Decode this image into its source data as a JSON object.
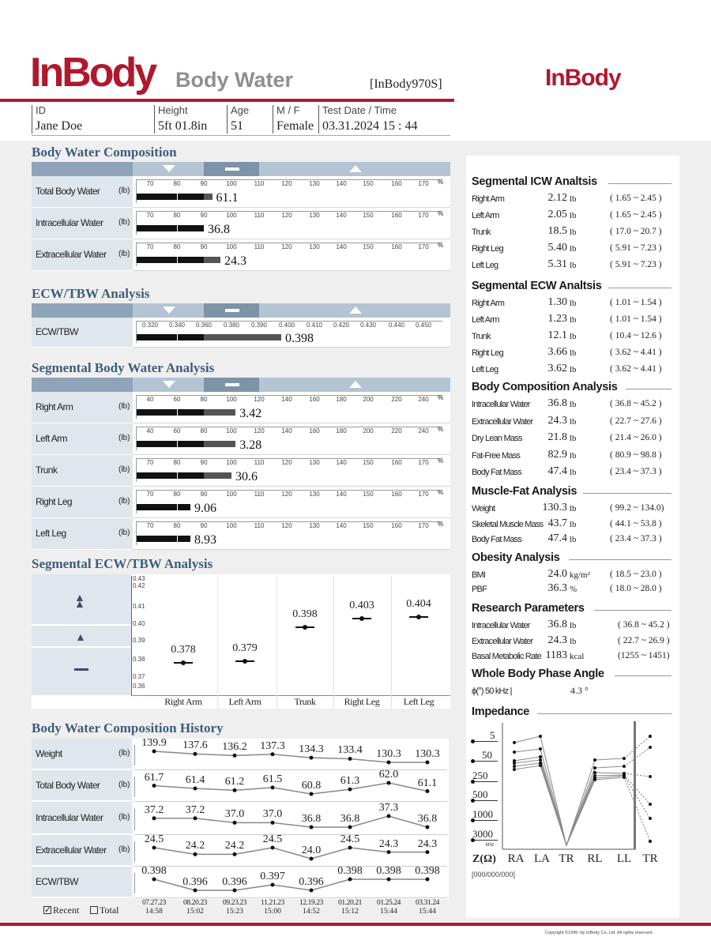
{
  "header": {
    "logo": "InBody",
    "report_title": "Body Water",
    "model": "[InBody970S]",
    "right_logo": "InBody",
    "fields": [
      {
        "label": "ID",
        "value": "Jane Doe"
      },
      {
        "label": "Height",
        "value": "5ft 01.8in"
      },
      {
        "label": "Age",
        "value": "51"
      },
      {
        "label": "M / F",
        "value": "Female"
      },
      {
        "label": "Test Date / Time",
        "value": "03.31.2024 15 : 44"
      }
    ]
  },
  "colors": {
    "brand_red": "#b0182e",
    "section_blue": "#3e5c7d",
    "band_dark": "#7d93a8",
    "band_light": "#b4c4d2",
    "label_bg": "#dfe6ec"
  },
  "range_icons": {
    "under": "triangle-down-icon",
    "normal": "dash-icon",
    "over": "triangle-up-icon"
  },
  "body_water_composition": {
    "title": "Body Water Composition",
    "ticks": [
      "70",
      "80",
      "90",
      "100",
      "110",
      "120",
      "130",
      "140",
      "150",
      "160",
      "170"
    ],
    "tick_unit": "%",
    "rows": [
      {
        "label": "Total Body Water",
        "unit": "(lb)",
        "value": "61.1",
        "level": 93
      },
      {
        "label": "Intracellular Water",
        "unit": "(lb)",
        "value": "36.8",
        "level": 90
      },
      {
        "label": "Extracellular Water",
        "unit": "(lb)",
        "value": "24.3",
        "level": 96
      }
    ]
  },
  "ecw_tbw_analysis": {
    "title": "ECW/TBW Analysis",
    "ticks": [
      "0.320",
      "0.340",
      "0.360",
      "0.380",
      "0.390",
      "0.400",
      "0.410",
      "0.420",
      "0.430",
      "0.440",
      "0.450"
    ],
    "rows": [
      {
        "label": "ECW/TBW",
        "unit": "",
        "value": "0.398",
        "level": 0.398
      }
    ]
  },
  "segmental_body_water": {
    "title": "Segmental Body Water Analysis",
    "tick_unit": "%",
    "rows": [
      {
        "label": "Right Arm",
        "unit": "(lb)",
        "value": "3.42",
        "level": 103,
        "ticks": [
          "40",
          "60",
          "80",
          "100",
          "120",
          "140",
          "160",
          "180",
          "200",
          "220",
          "240"
        ]
      },
      {
        "label": "Left Arm",
        "unit": "(lb)",
        "value": "3.28",
        "level": 103,
        "ticks": [
          "40",
          "60",
          "80",
          "100",
          "120",
          "140",
          "160",
          "180",
          "200",
          "220",
          "240"
        ]
      },
      {
        "label": "Trunk",
        "unit": "(lb)",
        "value": "30.6",
        "level": 100,
        "ticks": [
          "70",
          "80",
          "90",
          "100",
          "110",
          "120",
          "130",
          "140",
          "150",
          "160",
          "170"
        ]
      },
      {
        "label": "Right Leg",
        "unit": "(lb)",
        "value": "9.06",
        "level": 85,
        "ticks": [
          "70",
          "80",
          "90",
          "100",
          "110",
          "120",
          "130",
          "140",
          "150",
          "160",
          "170"
        ]
      },
      {
        "label": "Left Leg",
        "unit": "(lb)",
        "value": "8.93",
        "level": 85,
        "ticks": [
          "70",
          "80",
          "90",
          "100",
          "110",
          "120",
          "130",
          "140",
          "150",
          "160",
          "170"
        ]
      }
    ]
  },
  "chart_data": {
    "type": "scatter",
    "title": "Segmental ECW/TBW Analysis",
    "categories": [
      "Right Arm",
      "Left Arm",
      "Trunk",
      "Right Leg",
      "Left Leg"
    ],
    "values": [
      0.378,
      0.379,
      0.398,
      0.403,
      0.404
    ],
    "value_labels": [
      "0.378",
      "0.379",
      "0.398",
      "0.403",
      "0.404"
    ],
    "y_ticks": [
      "0.43",
      "0.42",
      "0.41",
      "0.40",
      "0.39",
      "0.38",
      "0.37",
      "0.36"
    ],
    "ylim": [
      0.36,
      0.43
    ],
    "zone_icons": [
      "double-triangle-up-icon",
      "triangle-up-icon",
      "dash-icon"
    ]
  },
  "history": {
    "title": "Body Water Composition History",
    "rows": [
      {
        "label": "Weight",
        "unit": "(lb)",
        "values": [
          "139.9",
          "137.6",
          "136.2",
          "137.3",
          "134.3",
          "133.4",
          "130.3",
          "130.3"
        ]
      },
      {
        "label": "Total Body Water",
        "unit": "(lb)",
        "values": [
          "61.7",
          "61.4",
          "61.2",
          "61.5",
          "60.8",
          "61.3",
          "62.0",
          "61.1"
        ]
      },
      {
        "label": "Intracellular Water",
        "unit": "(lb)",
        "values": [
          "37.2",
          "37.2",
          "37.0",
          "37.0",
          "36.8",
          "36.8",
          "37.3",
          "36.8"
        ]
      },
      {
        "label": "Extracellular Water",
        "unit": "(lb)",
        "values": [
          "24.5",
          "24.2",
          "24.2",
          "24.5",
          "24.0",
          "24.5",
          "24.3",
          "24.3"
        ]
      },
      {
        "label": "ECW/TBW",
        "unit": "",
        "values": [
          "0.398",
          "0.396",
          "0.396",
          "0.397",
          "0.396",
          "0.398",
          "0.398",
          "0.398"
        ]
      }
    ],
    "dates": [
      {
        "date": "07.27.23",
        "time": "14:58"
      },
      {
        "date": "08.20.23",
        "time": "15:02"
      },
      {
        "date": "09.23.23",
        "time": "15:23"
      },
      {
        "date": "11.21.23",
        "time": "15:00"
      },
      {
        "date": "12.19.23",
        "time": "14:52"
      },
      {
        "date": "01.20.21",
        "time": "15:12"
      },
      {
        "date": "01.25.24",
        "time": "15:44"
      },
      {
        "date": "03.31.24",
        "time": "15:44"
      }
    ],
    "recent_label": "Recent",
    "recent_checked": true,
    "total_label": "Total",
    "total_checked": false
  },
  "right_panel": {
    "sections": [
      {
        "title": "Segmental ICW Analtsis",
        "rows": [
          {
            "label": "Right Arm",
            "value": "2.12",
            "unit": "lb",
            "range": "( 1.65 ~ 2.45 )"
          },
          {
            "label": "Left Arm",
            "value": "2.05",
            "unit": "lb",
            "range": "( 1.65 ~ 2.45 )"
          },
          {
            "label": "Trunk",
            "value": "18.5",
            "unit": "lb",
            "range": "( 17.0 ~ 20.7 )"
          },
          {
            "label": "Right Leg",
            "value": "5.40",
            "unit": "lb",
            "range": "( 5.91 ~ 7.23 )"
          },
          {
            "label": "Left Leg",
            "value": "5.31",
            "unit": "lb",
            "range": "( 5.91 ~ 7.23 )"
          }
        ]
      },
      {
        "title": "Segmental ECW Analtsis",
        "rows": [
          {
            "label": "Right Arm",
            "value": "1.30",
            "unit": "lb",
            "range": "( 1.01 ~ 1.54 )"
          },
          {
            "label": "Left Arm",
            "value": "1.23",
            "unit": "lb",
            "range": "( 1.01 ~ 1.54 )"
          },
          {
            "label": "Trunk",
            "value": "12.1",
            "unit": "lb",
            "range": "( 10.4 ~ 12.6 )"
          },
          {
            "label": "Right Leg",
            "value": "3.66",
            "unit": "lb",
            "range": "( 3.62 ~ 4.41 )"
          },
          {
            "label": "Left Leg",
            "value": "3.62",
            "unit": "lb",
            "range": "( 3.62 ~ 4.41 )"
          }
        ]
      },
      {
        "title": "Body Composition Analysis",
        "rows": [
          {
            "label": "Intracellular Water",
            "value": "36.8",
            "unit": "lb",
            "range": "( 36.8 ~ 45.2 )"
          },
          {
            "label": "Extracellular Water",
            "value": "24.3",
            "unit": "lb",
            "range": "( 22.7 ~ 27.6 )"
          },
          {
            "label": "Dry Lean Mass",
            "value": "21.8",
            "unit": "lb",
            "range": "( 21.4 ~ 26.0 )"
          },
          {
            "label": "Fat-Free Mass",
            "value": "82.9",
            "unit": "lb",
            "range": "( 80.9 ~ 98.8 )"
          },
          {
            "label": "Body Fat Mass",
            "value": "47.4",
            "unit": "lb",
            "range": "( 23.4 ~ 37.3 )"
          }
        ]
      },
      {
        "title": "Muscle-Fat Analysis",
        "rows": [
          {
            "label": "Weight",
            "value": "130.3",
            "unit": "lb",
            "range": "( 99.2 ~ 134.0)"
          },
          {
            "label": "Skeletal Muscle Mass",
            "value": "43.7",
            "unit": "lb",
            "range": "( 44.1 ~ 53.8 )"
          },
          {
            "label": "Body Fat Mass",
            "value": "47.4",
            "unit": "lb",
            "range": "( 23.4 ~ 37.3 )"
          }
        ]
      },
      {
        "title": "Obesity Analysis",
        "rows": [
          {
            "label": "BMI",
            "value": "24.0",
            "unit": "kg/m²",
            "range": "( 18.5 ~ 23.0 )"
          },
          {
            "label": "PBF",
            "value": "36.3",
            "unit": "%",
            "range": "( 18.0 ~ 28.0 )"
          }
        ]
      },
      {
        "title": "Research Parameters",
        "rows": [
          {
            "label": "Intracellular Water",
            "value": "36.8",
            "unit": "lb",
            "range": "( 36.8 ~ 45.2 )"
          },
          {
            "label": "Extracellular Water",
            "value": "24.3",
            "unit": "lb",
            "range": "( 22.7 ~ 26.9 )"
          },
          {
            "label": "Basal Metabolic Rate",
            "value": "1183",
            "unit": "kcal",
            "range": "(1255 ~ 1451)"
          }
        ]
      },
      {
        "title": "Whole Body Phase Angle",
        "rows": [
          {
            "label": "ϕ(°) 50 kHz |",
            "value": "4.3 °",
            "unit": "",
            "range": ""
          }
        ]
      }
    ],
    "impedance": {
      "title": "Impedance",
      "frequencies": [
        "5",
        "50",
        "250",
        "500",
        "1000",
        "3000"
      ],
      "freq_unit": "kHz",
      "z_label": "Z(Ω)",
      "segments": [
        "RA",
        "LA",
        "TR",
        "RL",
        "LL",
        "TR"
      ],
      "note": "[000/000/000]"
    }
  },
  "footer": {
    "copyright": "Copyright ©1996~by InBody Co.,Ltd. All rights reserved."
  }
}
